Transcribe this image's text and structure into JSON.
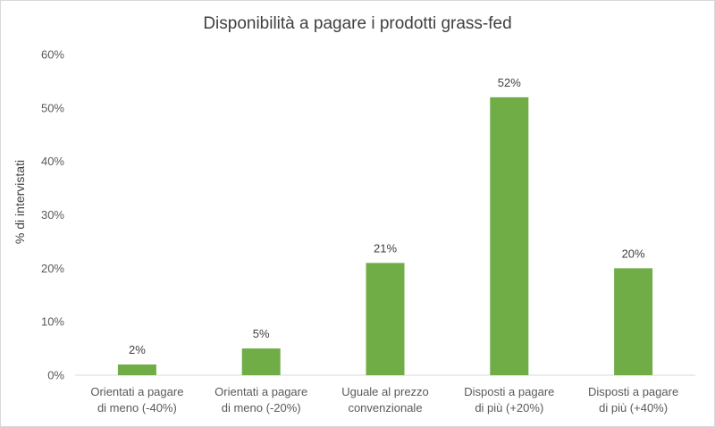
{
  "chart_data": {
    "type": "bar",
    "title": "Disponibilità a pagare i prodotti grass-fed",
    "xlabel": "",
    "ylabel": "% di intervistati",
    "ylim": [
      0,
      60
    ],
    "yticks": [
      "0%",
      "10%",
      "20%",
      "30%",
      "40%",
      "50%",
      "60%"
    ],
    "grid": false,
    "categories": [
      [
        "Orientati a pagare",
        "di meno (-40%)"
      ],
      [
        "Orientati a pagare",
        "di meno (-20%)"
      ],
      [
        "Uguale al prezzo",
        "convenzionale"
      ],
      [
        "Disposti a pagare",
        "di più (+20%)"
      ],
      [
        "Disposti a pagare",
        "di più (+40%)"
      ]
    ],
    "values": [
      2,
      5,
      21,
      52,
      20
    ],
    "data_labels": [
      "2%",
      "5%",
      "21%",
      "52%",
      "20%"
    ],
    "bar_color": "#70ad47",
    "axis_color": "#d9d9d9"
  }
}
